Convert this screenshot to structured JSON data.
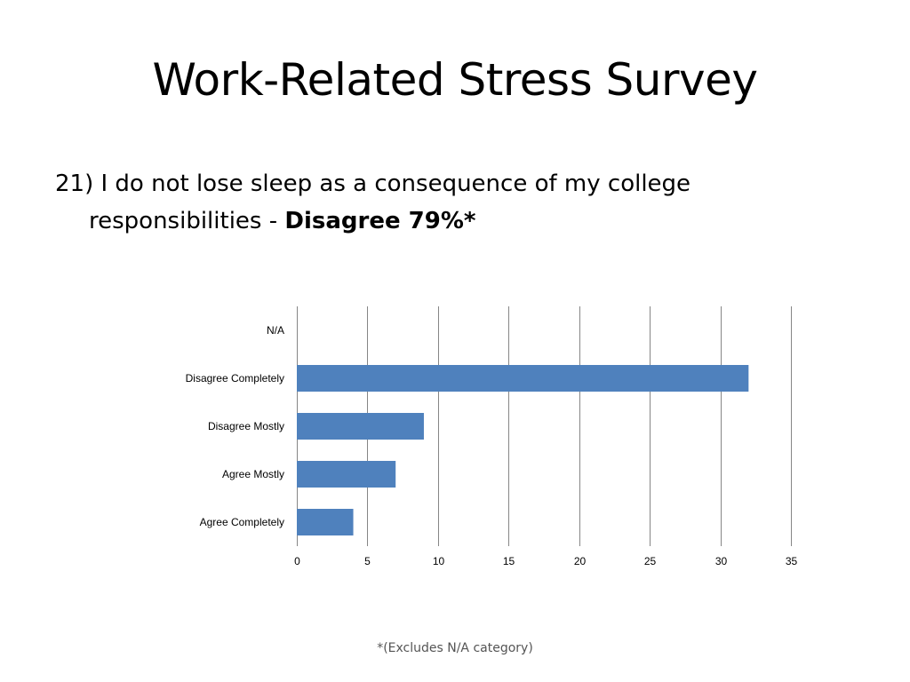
{
  "slide": {
    "title": "Work-Related Stress Survey",
    "question_text": "21) I do not lose sleep as a consequence of my college responsibilities - ",
    "answer_text": "Disagree 79%*",
    "footnote": "*(Excludes N/A category)"
  },
  "chart_data": {
    "type": "bar",
    "orientation": "horizontal",
    "categories": [
      "N/A",
      "Disagree Completely",
      "Disagree Mostly",
      "Agree Mostly",
      "Agree Completely"
    ],
    "values": [
      0,
      32,
      9,
      7,
      4
    ],
    "xlim": [
      0,
      35
    ],
    "xticks": [
      0,
      5,
      10,
      15,
      20,
      25,
      30,
      35
    ],
    "grid": true,
    "legend": false,
    "bar_color": "#4F81BD",
    "gridline_color": "#868686"
  }
}
